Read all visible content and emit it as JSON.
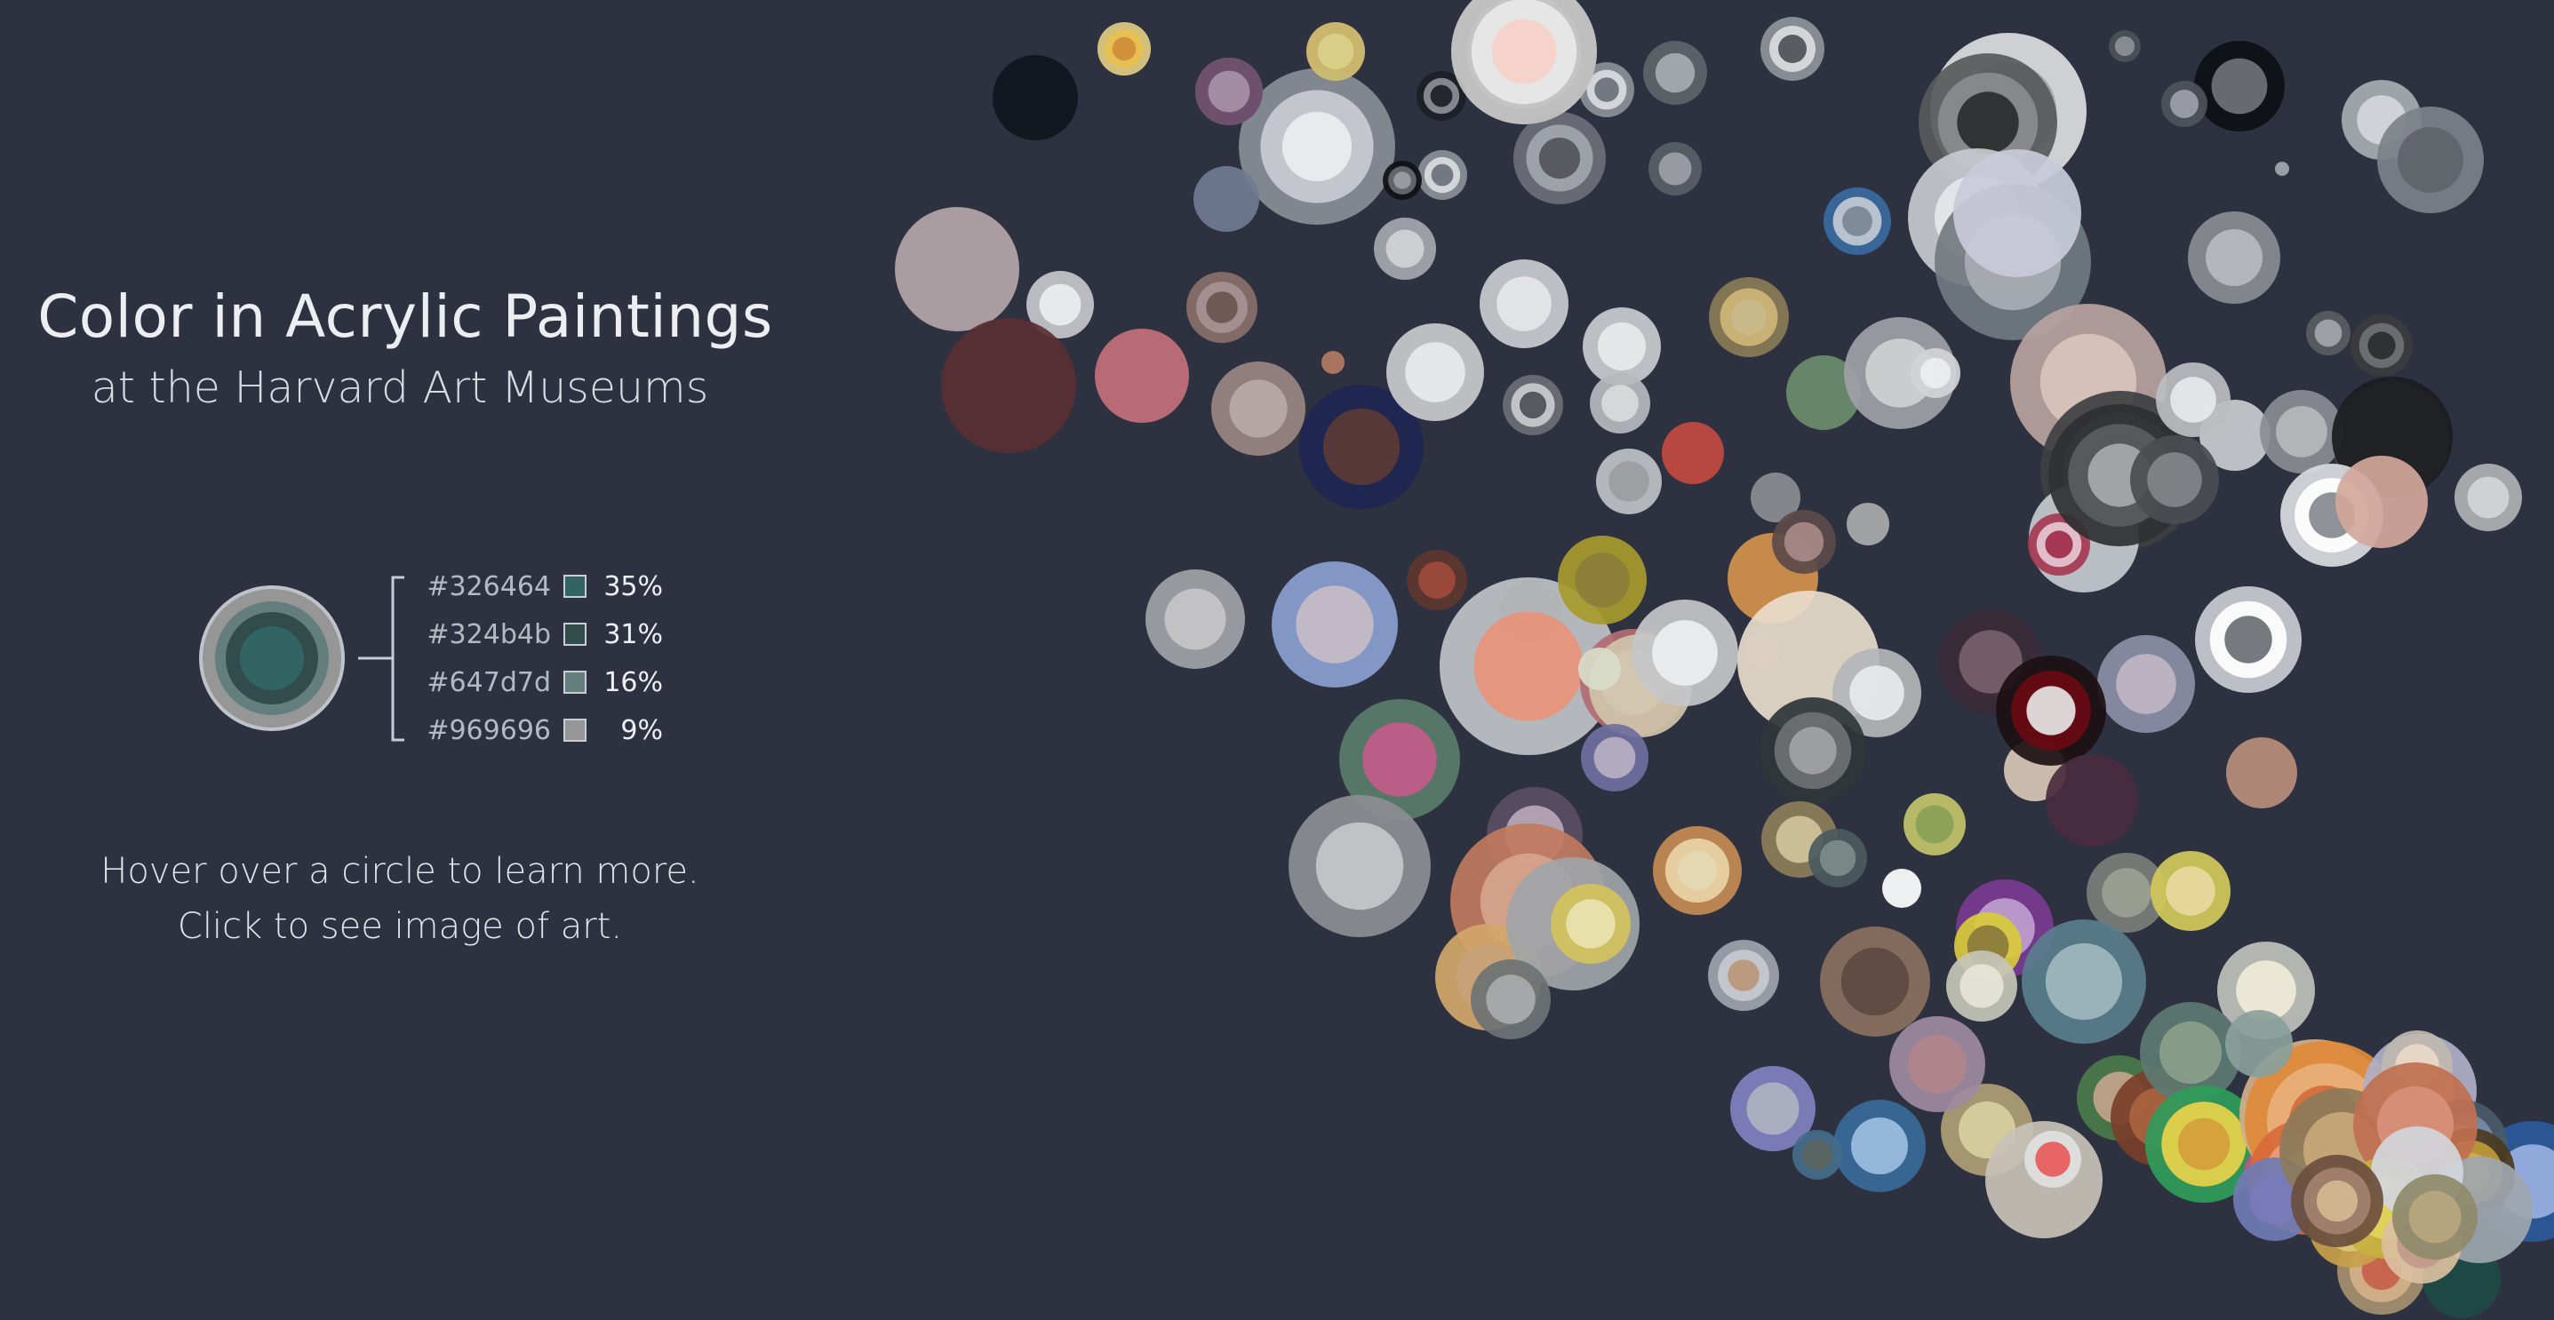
{
  "header": {
    "title": "Color in Acrylic Paintings",
    "subtitle": "at the Harvard Art Museums"
  },
  "legend": {
    "example_colors": [
      "#326464",
      "#324b4b",
      "#647d7d",
      "#969696"
    ],
    "items": [
      {
        "hex": "#326464",
        "swatch": "#326464",
        "percent": "35%"
      },
      {
        "hex": "#324b4b",
        "swatch": "#324b4b",
        "percent": "31%"
      },
      {
        "hex": "#647d7d",
        "swatch": "#647d7d",
        "percent": "16%"
      },
      {
        "hex": "#969696",
        "swatch": "#969696",
        "percent": "9%"
      }
    ]
  },
  "instructions": {
    "hover": "Hover over a circle to learn more.",
    "click": "Click to see image of art."
  },
  "colors": {
    "background": "#2d3140",
    "text": "#e4e6ea",
    "legend_line": "#c9ccd3"
  },
  "chart_data": {
    "type": "bubble",
    "encoding": "Each circle is one acrylic painting; concentric rings show its dominant colors from outermost (smallest share) to innermost (largest share).",
    "paintings": [
      {
        "rings": [
          "#b6b9b2",
          "#e8ebe4"
        ]
      },
      {
        "rings": [
          "#9a9da4",
          "#d6d8dc"
        ]
      },
      {
        "rings": [
          "#b83a48",
          "#e8c0c5"
        ]
      },
      {
        "rings": [
          "#a3a6ad",
          "#d9dbdf",
          "#ffffff",
          "#555a60"
        ]
      },
      {
        "rings": [
          "#8c9096",
          "#d9dbdf",
          "#6b7078"
        ]
      },
      {
        "rings": [
          "#8c9096",
          "#d9dbdf",
          "#6b7078"
        ]
      },
      {
        "rings": [
          "#5f6369",
          "#a7abb2"
        ]
      },
      {
        "rings": [
          "#11161d"
        ]
      },
      {
        "rings": [
          "#1c1f25",
          "#8b8f96",
          "#1c1f25"
        ]
      },
      {
        "rings": [
          "#8a8e96",
          "#c9ccd2",
          "#ecedf0"
        ]
      },
      {
        "rings": [
          "#0f1115",
          "#686c73",
          "#9ca0a6"
        ]
      },
      {
        "rings": [
          "#8f9399",
          "#d9dbdf",
          "#4e5258"
        ]
      },
      {
        "rings": [
          "#dcdde0",
          "#9ea2a8"
        ]
      },
      {
        "rings": [
          "#0d0f12",
          "#6f7379"
        ]
      },
      {
        "rings": [
          "#4d5157",
          "#8c9096"
        ]
      },
      {
        "rings": [
          "#4f535a",
          "#9da1a8"
        ]
      },
      {
        "rings": [
          "#58595b",
          "#8a8c8f",
          "#2a2b2d"
        ]
      },
      {
        "rings": [
          "#a8acb2",
          "#d4d6da"
        ]
      },
      {
        "rings": [
          "#7d8088",
          "#5f636a"
        ]
      },
      {
        "rings": [
          "#707b92"
        ]
      },
      {
        "rings": [
          "#6c6f76",
          "#a2a6ac",
          "#525459"
        ]
      },
      {
        "rings": [
          "#a5a8ae",
          "#d0d2d6"
        ]
      },
      {
        "rings": [
          "#5a5e66",
          "#9da0a6"
        ]
      },
      {
        "rings": [
          "#a4a7ae"
        ]
      },
      {
        "rings": [
          "#c7c9cd",
          "#e6e7ea"
        ]
      },
      {
        "rings": [
          "#b4a6a9"
        ]
      },
      {
        "rings": [
          "#c5c7cc",
          "#ecedf0"
        ]
      },
      {
        "rings": [
          "#8a6f6a",
          "#a89094",
          "#6b5450"
        ]
      },
      {
        "rings": [
          "#b27a62"
        ]
      },
      {
        "rings": [
          "#5a2f34"
        ]
      },
      {
        "rings": [
          "#c46f7a"
        ]
      },
      {
        "rings": [
          "#9a8682",
          "#b8a9a7"
        ]
      },
      {
        "rings": [
          "#1e2550",
          "#5a3a35"
        ]
      },
      {
        "rings": [
          "#c9cacc",
          "#e8e9ea"
        ]
      },
      {
        "rings": [
          "#c9cbce",
          "#e5e6e8"
        ]
      },
      {
        "rings": [
          "#c9cbce",
          "#e8e9eb"
        ]
      },
      {
        "rings": [
          "#6b6e74",
          "#c9cbce",
          "#4d5056"
        ]
      },
      {
        "rings": [
          "#8a7b55",
          "#cfb678",
          "#c9b98a"
        ]
      },
      {
        "rings": [
          "#b6b8bc",
          "#d9dadc"
        ]
      },
      {
        "rings": [
          "#3a6aa0",
          "#c3c9d2",
          "#7a8796"
        ]
      },
      {
        "rings": [
          "#6d8c6c"
        ]
      },
      {
        "rings": [
          "#9ea1a6",
          "#cfd0d2"
        ]
      },
      {
        "rings": [
          "#d2d4d8",
          "#eceef0"
        ]
      },
      {
        "rings": [
          "#727980",
          "#a9adb3"
        ]
      },
      {
        "rings": [
          "#8a8d92",
          "#b9bbbf"
        ]
      },
      {
        "rings": [
          "#3b3c3f",
          "#6f7175",
          "#2b2c2e"
        ]
      },
      {
        "rings": [
          "#c9cbd8"
        ]
      },
      {
        "rings": [
          "#b9a39f",
          "#d9c4bc"
        ]
      },
      {
        "rings": [
          "#3e3f42",
          "#707276",
          "#1f2023"
        ]
      },
      {
        "rings": [
          "#c9cbce"
        ]
      },
      {
        "rings": [
          "#c4cace"
        ]
      },
      {
        "rings": [
          "#a53a54",
          "#e6c8d3",
          "#9e2b4a"
        ]
      },
      {
        "rings": [
          "#2f3033",
          "#5a5c60",
          "#a7a9ad"
        ]
      },
      {
        "rings": [
          "#5a5d5f"
        ]
      },
      {
        "rings": [
          "#bcbdc1",
          "#e7e8ea"
        ]
      },
      {
        "rings": [
          "#4a4c50",
          "#828489"
        ]
      },
      {
        "rings": [
          "#8a8d92",
          "#b6b8bc"
        ]
      },
      {
        "rings": [
          "#5a5d62",
          "#a2a5aa"
        ]
      },
      {
        "rings": [
          "#1a1c20"
        ]
      },
      {
        "rings": [
          "#d9dbdf",
          "#ffffff",
          "#85898f"
        ]
      },
      {
        "rings": [
          "#d4a79a"
        ]
      },
      {
        "rings": [
          "#b0b1b4",
          "#d3d5d8"
        ]
      },
      {
        "rings": [
          "#c9cbd0",
          "#ffffff",
          "#6b6e73"
        ]
      },
      {
        "rings": [
          "#ba8d7a"
        ]
      },
      {
        "rings": [
          "#8c8fa6",
          "#c0b6c4"
        ]
      },
      {
        "rings": [
          "#3b2a36",
          "#7a5f6c"
        ]
      },
      {
        "rings": [
          "#d9c7b5"
        ]
      },
      {
        "rings": [
          "#c34a40"
        ]
      },
      {
        "rings": [
          "#bfc1c4",
          "#9b9da0"
        ]
      },
      {
        "rings": [
          "#8b8e93"
        ]
      },
      {
        "rings": [
          "#050608"
        ]
      },
      {
        "rings": [
          "#c0c2c6",
          "#e8937a"
        ]
      },
      {
        "rings": [
          "#b26b72",
          "#e9dadc"
        ]
      },
      {
        "rings": [
          "#a89a2e",
          "#8d7d3a"
        ]
      },
      {
        "rings": [
          "#d0c4aa"
        ]
      },
      {
        "rings": [
          "#c4c6c9",
          "#eceef0"
        ]
      },
      {
        "rings": [
          "#5e3630",
          "#a04a3a"
        ]
      },
      {
        "rings": [
          "#d8dcc8"
        ]
      },
      {
        "rings": [
          "#8aa0d0",
          "#c8bcc5"
        ]
      },
      {
        "rings": [
          "#a0a2a6",
          "#c5c6c9"
        ]
      },
      {
        "rings": [
          "#d4924c"
        ]
      },
      {
        "rings": [
          "#5c4a4a",
          "#a88a8a"
        ]
      },
      {
        "rings": [
          "#ababab"
        ]
      },
      {
        "rings": [
          "#4f3f42"
        ]
      },
      {
        "rings": [
          "#e8dccc"
        ]
      },
      {
        "rings": [
          "#b4b6b8",
          "#e7e8ea"
        ]
      },
      {
        "rings": [
          "#2f3638",
          "#6e7173",
          "#a1a3a5"
        ]
      },
      {
        "rings": [
          "#ffffff"
        ]
      },
      {
        "rings": [
          "#1c1014",
          "#6a0a14",
          "#e5e5e5"
        ]
      },
      {
        "rings": [
          "#4a2a3e"
        ]
      },
      {
        "rings": [
          "#5b4d64",
          "#b8a7b6"
        ]
      },
      {
        "rings": [
          "#6f6fa0",
          "#b9b0c4"
        ]
      },
      {
        "rings": [
          "#5a7c6a",
          "#c25b8a"
        ]
      },
      {
        "rings": [
          "#c07a5e",
          "#d6a48e"
        ]
      },
      {
        "rings": [
          "#d2a66a",
          "#c7a37a"
        ]
      },
      {
        "rings": [
          "#8c8e92",
          "#c6c8cb"
        ]
      },
      {
        "rings": [
          "#a0a4a8"
        ]
      },
      {
        "rings": [
          "#6c7274",
          "#a9adb0"
        ]
      },
      {
        "rings": [
          "#8c7e5a",
          "#d1c39b"
        ]
      },
      {
        "rings": [
          "#4a5a5e",
          "#7d8c8a"
        ]
      },
      {
        "rings": [
          "#c3c46a",
          "#8aa058"
        ]
      },
      {
        "rings": [
          "#7a3a90",
          "#c0a0d0"
        ]
      },
      {
        "rings": [
          "#d8ca3a",
          "#8b7a3c"
        ]
      },
      {
        "rings": [
          "#7a7e78",
          "#9c9f92"
        ]
      },
      {
        "rings": [
          "#d3c95a",
          "#e8d8a0"
        ]
      },
      {
        "rings": [
          "#5a7e8c",
          "#9fb8c0"
        ]
      },
      {
        "rings": [
          "#bfc0ba",
          "#f0ebd8"
        ]
      },
      {
        "rings": [
          "#c6c6b8",
          "#e6e4d8"
        ]
      },
      {
        "rings": [
          "#c68a54",
          "#e8d4a6",
          "#e4d8b2"
        ]
      },
      {
        "rings": [
          "#d2c35c",
          "#e9e3b0"
        ]
      },
      {
        "rings": [
          "#a0a3aa",
          "#c8cad0",
          "#b8967a"
        ]
      },
      {
        "rings": [
          "#8a6f5e",
          "#5e4a42"
        ]
      },
      {
        "rings": [
          "#8080c0",
          "#b0b2c2"
        ]
      },
      {
        "rings": [
          "#3a6a9a",
          "#9dbfe0"
        ]
      },
      {
        "rings": [
          "#446c8a",
          "#5a6460"
        ]
      },
      {
        "rings": [
          "#b09e76",
          "#d8cfa0"
        ]
      },
      {
        "rings": [
          "#9e8aa0",
          "#b1868c"
        ]
      },
      {
        "rings": [
          "#4a7a4a",
          "#c2a38c"
        ]
      },
      {
        "rings": [
          "#7a3e2a",
          "#a9643f"
        ]
      },
      {
        "rings": [
          "#5d7a72",
          "#8a9e8a"
        ]
      },
      {
        "rings": [
          "#c8c2b8"
        ]
      },
      {
        "rings": [
          "#e0e0e0",
          "#e85a5a"
        ]
      },
      {
        "rings": [
          "#2f9c5a",
          "#e8d24a",
          "#d4a03a"
        ]
      },
      {
        "rings": [
          "#c6508a",
          "#eab0d0"
        ]
      },
      {
        "rings": [
          "#d4b08a"
        ]
      },
      {
        "rings": [
          "#e08a3a",
          "#e8b07a",
          "#d46a3a"
        ]
      },
      {
        "rings": [
          "#a69070",
          "#d2b08a",
          "#c5604a"
        ]
      },
      {
        "rings": [
          "#d86a3a",
          "#e8a07a",
          "#f0d0a0"
        ]
      },
      {
        "rings": [
          "#1e4a44"
        ]
      },
      {
        "rings": [
          "#2a5a9a",
          "#9ab0e0"
        ]
      },
      {
        "rings": [
          "#6f7cb4",
          "#7a7ab8"
        ]
      },
      {
        "rings": [
          "#8c7a5a",
          "#c8a87a"
        ]
      },
      {
        "rings": [
          "#b0b0c8",
          "#f0c0a0"
        ]
      },
      {
        "rings": [
          "#4a5a6a",
          "#7a8aa8",
          "#c0cfe8"
        ]
      },
      {
        "rings": [
          "#4a3a1e",
          "#c09a3a",
          "#d4b04a"
        ]
      },
      {
        "rings": [
          "#c9a04a",
          "#d8c87a"
        ]
      },
      {
        "rings": [
          "#8aa09a"
        ]
      },
      {
        "rings": [
          "#c0b9b0",
          "#e8d8c8"
        ]
      },
      {
        "rings": [
          "#c07050",
          "#d8907a"
        ]
      },
      {
        "rings": [
          "#c8b040",
          "#e2d25a"
        ]
      },
      {
        "rings": [
          "#9ea6ae"
        ]
      },
      {
        "rings": [
          "#d2d6dc"
        ]
      },
      {
        "rings": [
          "#6a4e3e",
          "#a38270",
          "#d4b890"
        ]
      },
      {
        "rings": [
          "#dac0a0",
          "#c09a8a"
        ]
      },
      {
        "rings": [
          "#8e8a6a",
          "#b8a67e"
        ]
      },
      {
        "rings": [
          "#d6c078",
          "#e8c050",
          "#cf8e3a"
        ]
      },
      {
        "rings": [
          "#6a4a6a",
          "#a890a8"
        ]
      },
      {
        "rings": [
          "#ccc070",
          "#d9cf8a"
        ]
      },
      {
        "rings": [
          "#c2c2c2",
          "#e8e8e8",
          "#f6d0c8"
        ]
      }
    ]
  }
}
